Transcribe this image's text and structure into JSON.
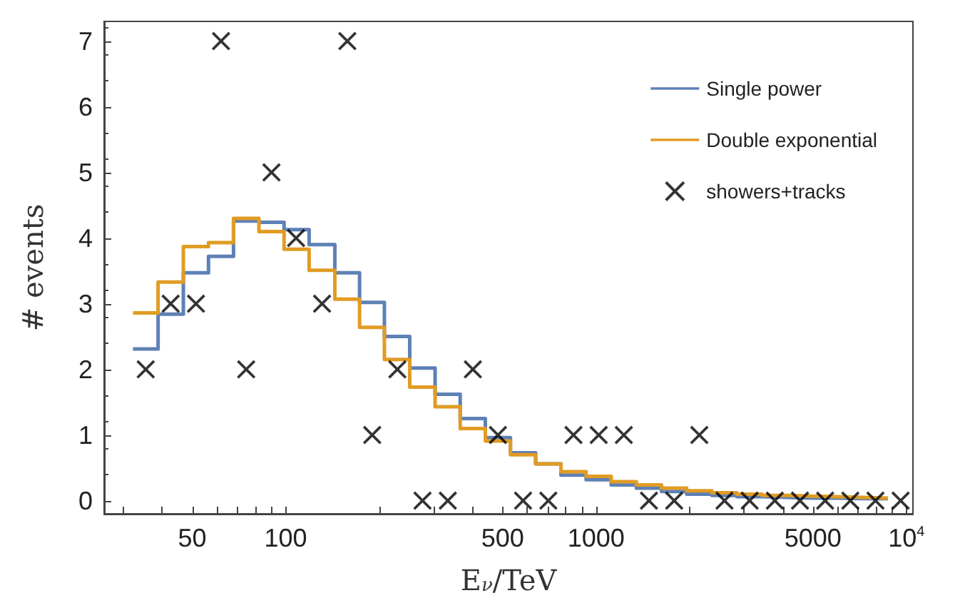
{
  "chart_data": {
    "type": "histogram",
    "xlabel": "E$_{ν}$/TeV",
    "ylabel": "# events",
    "log": "x",
    "bins": [
      32.2,
      38.8,
      46.8,
      56.4,
      67.9,
      82.0,
      98.8,
      119,
      144,
      173,
      208,
      251,
      303,
      365,
      440,
      530,
      639,
      771,
      929,
      1119,
      1349,
      1626,
      1959,
      2361,
      2845,
      3429,
      4136,
      4984,
      6007,
      7240,
      8726
    ],
    "series": [
      {
        "name": "Single power",
        "color": "#5e81b5",
        "values": [
          2.31,
          2.84,
          3.47,
          3.72,
          4.26,
          4.24,
          4.13,
          3.9,
          3.47,
          3.02,
          2.5,
          2.02,
          1.62,
          1.25,
          0.96,
          0.73,
          0.56,
          0.39,
          0.32,
          0.24,
          0.19,
          0.14,
          0.1,
          0.08,
          0.06,
          0.05,
          0.04,
          0.04,
          0.03,
          0.03
        ]
      },
      {
        "name": "Double exponential",
        "color": "#e19c24",
        "values": [
          2.86,
          3.33,
          3.87,
          3.93,
          4.3,
          4.1,
          3.83,
          3.51,
          3.07,
          2.64,
          2.15,
          1.73,
          1.43,
          1.1,
          0.91,
          0.7,
          0.56,
          0.44,
          0.37,
          0.29,
          0.24,
          0.19,
          0.15,
          0.12,
          0.1,
          0.08,
          0.07,
          0.06,
          0.05,
          0.04
        ]
      },
      {
        "name": "showers+tracks",
        "type": "scatter",
        "color": "#000000",
        "marker": "cross",
        "x": [
          35.4,
          42.6,
          51.4,
          61.9,
          74.6,
          90.0,
          108,
          131,
          158,
          190,
          229,
          276,
          333,
          401,
          483,
          582,
          702,
          846,
          1020,
          1229,
          1481,
          1786,
          2152,
          2594,
          3126,
          3768,
          4542,
          5474,
          6598,
          7952,
          9585
        ],
        "values": [
          2,
          3,
          3,
          7,
          2,
          5,
          4,
          3,
          7,
          1,
          2,
          0,
          0,
          2,
          1,
          0,
          0,
          1,
          1,
          1,
          0,
          0,
          1,
          0,
          0,
          0,
          0,
          0,
          0,
          0,
          0
        ]
      }
    ],
    "xlim": [
      26,
      10500
    ],
    "ylim": [
      -0.2,
      7.3
    ],
    "xticks": [
      {
        "value": 30,
        "label": null
      },
      {
        "value": 40,
        "label": null
      },
      50,
      {
        "value": 60,
        "label": null
      },
      {
        "value": 70,
        "label": null
      },
      {
        "value": 80,
        "label": null
      },
      {
        "value": 90,
        "label": null
      },
      100,
      {
        "value": 200,
        "label": null
      },
      {
        "value": 300,
        "label": null
      },
      {
        "value": 400,
        "label": null
      },
      500,
      {
        "value": 600,
        "label": null
      },
      {
        "value": 700,
        "label": null
      },
      {
        "value": 800,
        "label": null
      },
      {
        "value": 900,
        "label": null
      },
      1000,
      {
        "value": 2000,
        "label": null
      },
      {
        "value": 3000,
        "label": null
      },
      {
        "value": 4000,
        "label": null
      },
      5000,
      {
        "value": 6000,
        "label": null
      },
      {
        "value": 7000,
        "label": null
      },
      {
        "value": 8000,
        "label": null
      },
      {
        "value": 9000,
        "label": null
      },
      {
        "value": 10000,
        "label": "10$^{4}$"
      }
    ],
    "yticks": [
      0,
      1,
      2,
      3,
      4,
      5,
      6,
      7
    ],
    "grid": false,
    "legend": "top right"
  }
}
